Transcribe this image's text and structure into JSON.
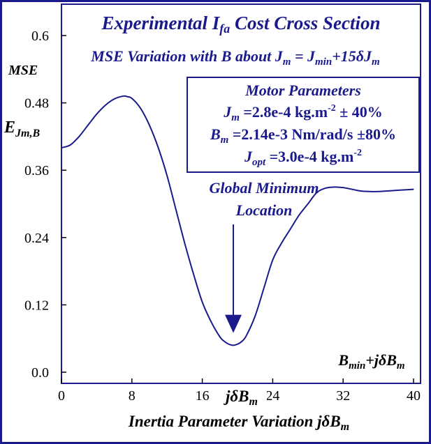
{
  "chart_data": {
    "type": "line",
    "title": "Experimental I",
    "title_sub": "fa",
    "title_rest": " Cost Cross Section",
    "subtitle": {
      "a": "MSE Variation with B about J",
      "a_sub": "m",
      "b": " = J",
      "b_sub": "min",
      "c": "+15δJ",
      "c_sub": "m"
    },
    "ylabel_top": "MSE",
    "ylabel_main": "E",
    "ylabel_sub": "Jm,B",
    "corner_label": {
      "a": "B",
      "a_sub": "min",
      "b": "+jδB",
      "b_sub": "m"
    },
    "xlabel": "Inertia Parameter Variation jδB",
    "xlabel_sub": "m",
    "x_mid_label": "jδB",
    "x_mid_label_sub": "m",
    "xlim": [
      0,
      40
    ],
    "ylim": [
      0,
      0.6
    ],
    "xticks": [
      0,
      8,
      16,
      24,
      32,
      40
    ],
    "yticks": [
      0.0,
      0.12,
      0.24,
      0.36,
      0.48,
      0.6
    ],
    "ytick_labels": [
      "0.0",
      "0.12",
      "0.24",
      "0.36",
      "0.48",
      "0.6"
    ],
    "xtick_labels": [
      "0",
      "8",
      "16",
      "24",
      "32",
      "40"
    ],
    "grid": false,
    "series": [
      {
        "x": [
          0,
          1,
          2,
          3,
          4,
          5,
          6,
          7,
          7.5,
          8,
          9,
          10,
          11,
          12,
          13,
          14,
          15,
          16,
          17,
          18,
          18.5,
          19,
          19.5,
          20,
          20.5,
          21,
          22,
          23,
          24,
          25,
          26,
          27,
          28,
          29,
          30,
          31,
          32,
          33,
          34,
          35,
          36,
          37,
          38,
          39,
          40
        ],
        "y": [
          0.4,
          0.405,
          0.42,
          0.44,
          0.46,
          0.476,
          0.487,
          0.492,
          0.491,
          0.488,
          0.47,
          0.44,
          0.4,
          0.35,
          0.29,
          0.23,
          0.175,
          0.125,
          0.09,
          0.063,
          0.055,
          0.05,
          0.048,
          0.05,
          0.055,
          0.065,
          0.1,
          0.15,
          0.2,
          0.23,
          0.255,
          0.28,
          0.3,
          0.32,
          0.328,
          0.33,
          0.329,
          0.326,
          0.323,
          0.322,
          0.322,
          0.323,
          0.324,
          0.325,
          0.326
        ]
      }
    ],
    "colors": {
      "line": "#1a1a8c",
      "text": "#1a1a8c",
      "frame": "#1a1a8c"
    },
    "annotation": {
      "line1": "Global Minimum",
      "line2": "Location",
      "arrow_x": 20,
      "arrow_tip_y": 0.07
    },
    "legend_box": {
      "heading": "Motor Parameters",
      "row1": {
        "a": "J",
        "a_sub": "m",
        "b": " =2.8e-4 kg.m",
        "b_sup": "-2",
        "c": " ± 40%"
      },
      "row2": {
        "a": "B",
        "a_sub": "m",
        "b": " =2.14e-3 Nm/rad/s ±80%"
      },
      "row3": {
        "a": "J",
        "a_sub": "opt",
        "b": " =3.0e-4 kg.m",
        "b_sup": "-2"
      },
      "placement": "top-right"
    }
  }
}
